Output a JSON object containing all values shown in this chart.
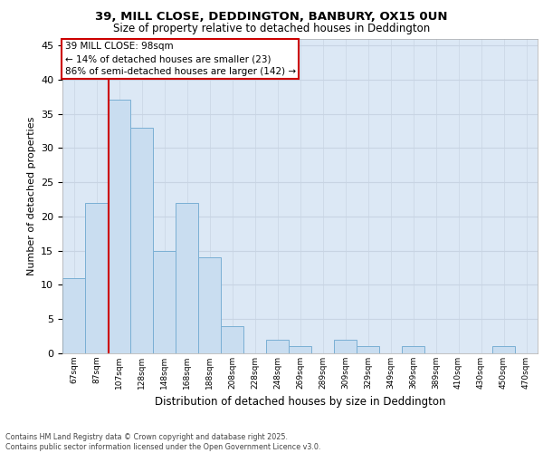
{
  "title_line1": "39, MILL CLOSE, DEDDINGTON, BANBURY, OX15 0UN",
  "title_line2": "Size of property relative to detached houses in Deddington",
  "xlabel": "Distribution of detached houses by size in Deddington",
  "ylabel": "Number of detached properties",
  "bins": [
    "67sqm",
    "87sqm",
    "107sqm",
    "128sqm",
    "148sqm",
    "168sqm",
    "188sqm",
    "208sqm",
    "228sqm",
    "248sqm",
    "269sqm",
    "289sqm",
    "309sqm",
    "329sqm",
    "349sqm",
    "369sqm",
    "389sqm",
    "410sqm",
    "430sqm",
    "450sqm",
    "470sqm"
  ],
  "bar_values": [
    11,
    22,
    37,
    33,
    15,
    22,
    14,
    4,
    0,
    2,
    1,
    0,
    2,
    1,
    0,
    1,
    0,
    0,
    0,
    1,
    0
  ],
  "bar_color": "#c9ddf0",
  "bar_edge_color": "#7aafd4",
  "grid_color": "#c8d4e3",
  "bg_color": "#dce8f5",
  "vline_bin_index": 1.55,
  "annotation_text": "39 MILL CLOSE: 98sqm\n← 14% of detached houses are smaller (23)\n86% of semi-detached houses are larger (142) →",
  "annotation_box_color": "#ffffff",
  "annotation_box_edge": "#cc0000",
  "ylim": [
    0,
    46
  ],
  "yticks": [
    0,
    5,
    10,
    15,
    20,
    25,
    30,
    35,
    40,
    45
  ],
  "footnote": "Contains HM Land Registry data © Crown copyright and database right 2025.\nContains public sector information licensed under the Open Government Licence v3.0.",
  "vline_color": "#cc0000"
}
